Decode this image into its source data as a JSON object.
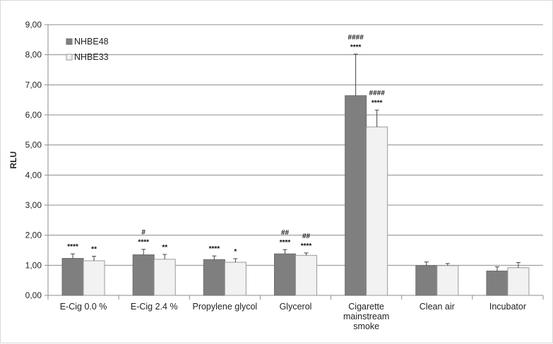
{
  "chart_data": {
    "type": "bar",
    "categories": [
      [
        "E-Cig 0.0 %"
      ],
      [
        "E-Cig 2.4 %"
      ],
      [
        "Propylene glycol"
      ],
      [
        "Glycerol"
      ],
      [
        "Cigarette",
        "mainstream",
        "smoke"
      ],
      [
        "Clean air"
      ],
      [
        "Incubator"
      ]
    ],
    "series": [
      {
        "name": "NHBE48",
        "color": "#7f7f7f",
        "values": [
          1.23,
          1.35,
          1.19,
          1.38,
          6.64,
          0.99,
          0.81
        ],
        "errors": [
          0.15,
          0.18,
          0.12,
          0.14,
          1.38,
          0.12,
          0.14
        ],
        "annotations": [
          [
            "****"
          ],
          [
            "#",
            "****"
          ],
          [
            "****"
          ],
          [
            "##",
            "****"
          ],
          [
            "####",
            "****"
          ],
          [],
          []
        ]
      },
      {
        "name": "NHBE33",
        "color": "#f2f2f2",
        "values": [
          1.15,
          1.2,
          1.1,
          1.33,
          5.6,
          0.99,
          0.92
        ],
        "errors": [
          0.15,
          0.16,
          0.12,
          0.08,
          0.56,
          0.07,
          0.17
        ],
        "annotations": [
          [
            "**"
          ],
          [
            "**"
          ],
          [
            "*"
          ],
          [
            "##",
            "****"
          ],
          [
            "####",
            "****"
          ],
          [],
          []
        ]
      }
    ],
    "ylabel": "RLU",
    "ylim": [
      0,
      9
    ],
    "yticks": [
      "0,00",
      "1,00",
      "2,00",
      "3,00",
      "4,00",
      "5,00",
      "6,00",
      "7,00",
      "8,00",
      "9,00"
    ],
    "grid": true,
    "legend": "top-left"
  }
}
